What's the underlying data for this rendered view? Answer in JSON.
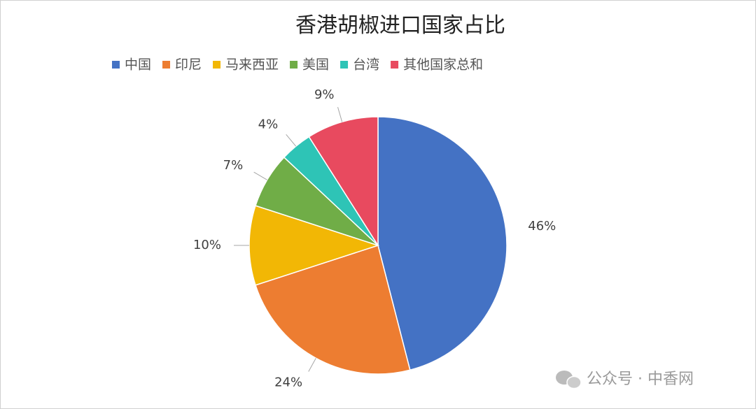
{
  "chart_data": {
    "type": "pie",
    "title": "香港胡椒进口国家占比",
    "categories": [
      "中国",
      "印尼",
      "马来西亚",
      "美国",
      "台湾",
      "其他国家总和"
    ],
    "values": [
      46,
      24,
      10,
      7,
      4,
      9
    ],
    "value_labels": [
      "46%",
      "24%",
      "10%",
      "7%",
      "4%",
      "9%"
    ],
    "colors": [
      "#4472c4",
      "#ed7d31",
      "#f2b705",
      "#70ad47",
      "#2ec4b6",
      "#e84a5f"
    ],
    "legend": "top"
  },
  "watermark": "公众号 · 中香网"
}
